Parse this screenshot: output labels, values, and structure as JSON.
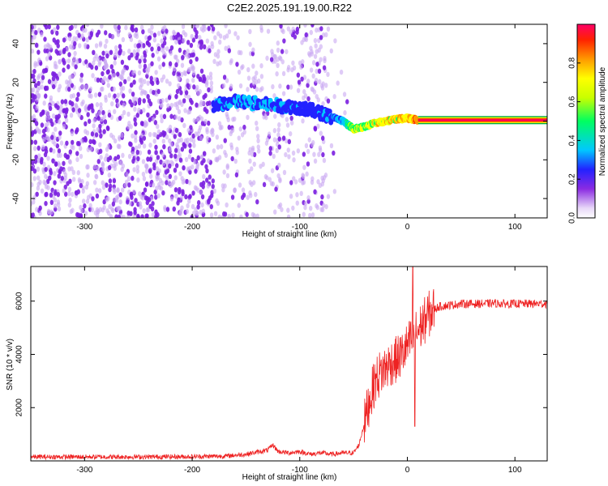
{
  "title": "C2E2.2025.191.19.00.R22",
  "colors": {
    "snr_line": "#ee2222",
    "scatter_purple": "#7b1fe0",
    "axis": "#000000"
  },
  "chart_data": [
    {
      "type": "heatmap",
      "xlabel": "Height of straight line (km)",
      "ylabel": "Frequency (Hz)",
      "xlim": [
        -350,
        130
      ],
      "ylim": [
        -50,
        50
      ],
      "xticks": [
        "-300",
        "-200",
        "-100",
        "0",
        "100"
      ],
      "xtick_values": [
        -300,
        -200,
        -100,
        0,
        100
      ],
      "yticks": [
        "40",
        "20",
        "0",
        "-20",
        "-40"
      ],
      "ytick_values": [
        40,
        20,
        0,
        -20,
        -40
      ],
      "colorbar": {
        "label": "Normalized spectral amplitude",
        "range": [
          0,
          1
        ],
        "ticks": [
          "0.0",
          "0.2",
          "0.4",
          "0.6",
          "0.8"
        ],
        "tick_values": [
          0.0,
          0.2,
          0.4,
          0.6,
          0.8
        ]
      },
      "ridge": {
        "x": [
          -180,
          -160,
          -140,
          -120,
          -100,
          -85,
          -70,
          -60,
          -50,
          -40,
          -30,
          -20,
          -10,
          0,
          10,
          50,
          100,
          130
        ],
        "y": [
          8,
          10,
          9,
          8,
          7,
          5,
          2,
          0,
          -4,
          -3,
          -1,
          0,
          1,
          1.5,
          0.5,
          0.5,
          0.5,
          0.5
        ],
        "amplitude": [
          0.35,
          0.4,
          0.45,
          0.4,
          0.35,
          0.35,
          0.4,
          0.45,
          0.8,
          0.75,
          0.85,
          0.85,
          0.9,
          0.9,
          1.0,
          1.0,
          1.0,
          1.0
        ]
      }
    },
    {
      "type": "line",
      "xlabel": "Height of straight line (km)",
      "ylabel": "SNR (10 * v/v)",
      "xlim": [
        -350,
        130
      ],
      "ylim": [
        0,
        7300
      ],
      "xticks": [
        "-300",
        "-200",
        "-100",
        "0",
        "100"
      ],
      "xtick_values": [
        -300,
        -200,
        -100,
        0,
        100
      ],
      "yticks": [
        "2000",
        "4000",
        "6000"
      ],
      "ytick_values": [
        2000,
        4000,
        6000
      ],
      "series": [
        {
          "x": [
            -350,
            -300,
            -250,
            -200,
            -170,
            -150,
            -130,
            -125,
            -120,
            -110,
            -100,
            -90,
            -80,
            -70,
            -60,
            -50,
            -45,
            -40,
            -35,
            -30,
            -25,
            -20,
            -15,
            -10,
            -5,
            0,
            5,
            10,
            15,
            20,
            25,
            30,
            40,
            50,
            60,
            70,
            80,
            90,
            100,
            110,
            120,
            130
          ],
          "y": [
            150,
            150,
            150,
            160,
            180,
            250,
            400,
            600,
            350,
            300,
            350,
            250,
            300,
            250,
            300,
            300,
            600,
            1400,
            2300,
            3000,
            3300,
            3500,
            3700,
            3800,
            4000,
            4300,
            4600,
            4900,
            5200,
            5500,
            5700,
            5800,
            5850,
            5900,
            5900,
            5900,
            5920,
            5900,
            5900,
            5900,
            5900,
            5900
          ]
        }
      ]
    }
  ]
}
